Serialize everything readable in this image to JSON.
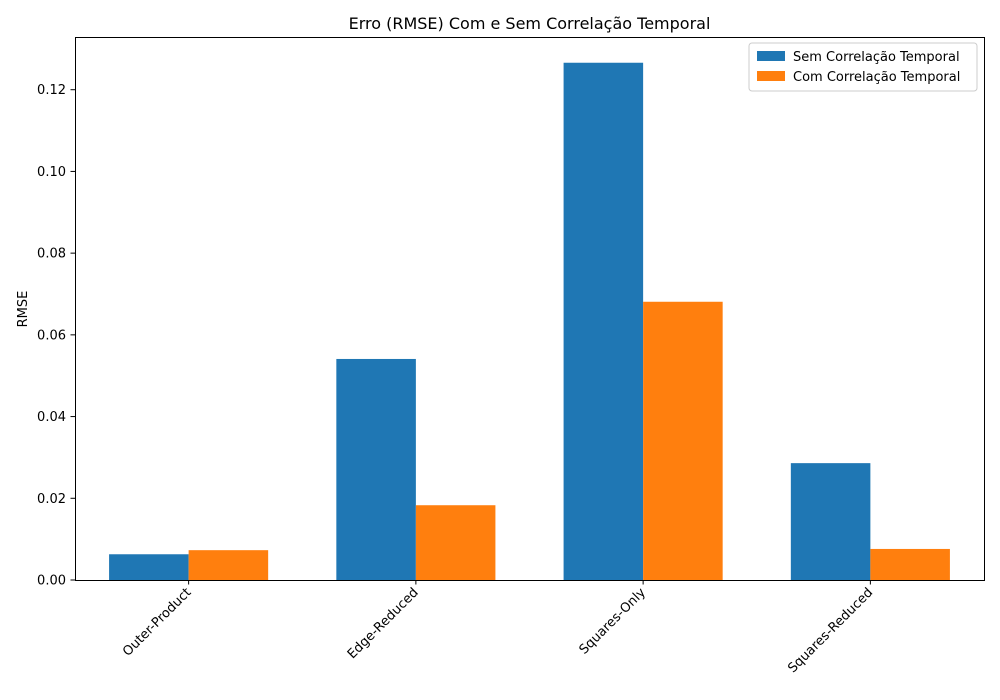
{
  "chart_data": {
    "type": "bar",
    "title": "Erro (RMSE) Com e Sem Correlação Temporal",
    "xlabel": "",
    "ylabel": "RMSE",
    "categories": [
      "Outer-Product",
      "Edge-Reduced",
      "Squares-Only",
      "Squares-Reduced"
    ],
    "series": [
      {
        "name": "Sem Correlação Temporal",
        "color": "#1f77b4",
        "values": [
          0.0063,
          0.0541,
          0.1266,
          0.0286
        ]
      },
      {
        "name": "Com Correlação Temporal",
        "color": "#ff7f0e",
        "values": [
          0.0073,
          0.0183,
          0.0681,
          0.0076
        ]
      }
    ],
    "ylim": [
      0,
      0.1329
    ],
    "yticks": [
      0.0,
      0.02,
      0.04,
      0.06,
      0.08,
      0.1,
      0.12
    ],
    "ytick_labels": [
      "0.00",
      "0.02",
      "0.04",
      "0.06",
      "0.08",
      "0.10",
      "0.12"
    ],
    "grid": false,
    "legend_position": "top-right"
  }
}
